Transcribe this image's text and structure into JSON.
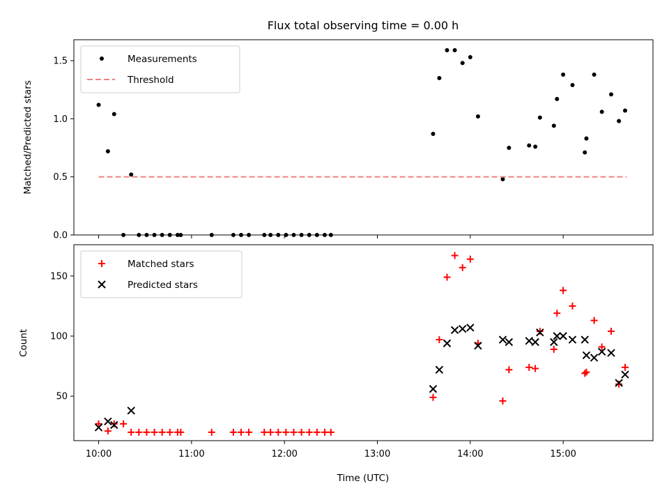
{
  "chart_data": [
    {
      "type": "scatter",
      "title": "Flux total observing time = 0.00 h",
      "xlabel": "",
      "ylabel": "Matched/Predicted stars",
      "ylim": [
        0.0,
        1.68
      ],
      "yticks": [
        "0.0",
        "0.5",
        "1.0",
        "1.5"
      ],
      "ytick_values": [
        0.0,
        0.5,
        1.0,
        1.5
      ],
      "xlim": [
        "09:44",
        "15:58"
      ],
      "xticks": [
        "10:00",
        "11:00",
        "12:00",
        "13:00",
        "14:00",
        "15:00"
      ],
      "show_xtick_labels": false,
      "grid": false,
      "legend_position": "upper-left",
      "series": [
        {
          "name": "Measurements",
          "marker": "dot",
          "color": "#000000",
          "points": [
            [
              "10:00",
              1.12
            ],
            [
              "10:06",
              0.72
            ],
            [
              "10:10",
              1.04
            ],
            [
              "10:16",
              0.0
            ],
            [
              "10:21",
              0.52
            ],
            [
              "10:26",
              0.0
            ],
            [
              "10:31",
              0.0
            ],
            [
              "10:36",
              0.0
            ],
            [
              "10:41",
              0.0
            ],
            [
              "10:46",
              0.0
            ],
            [
              "10:51",
              0.0
            ],
            [
              "10:53",
              0.0
            ],
            [
              "11:13",
              0.0
            ],
            [
              "11:27",
              0.0
            ],
            [
              "11:32",
              0.0
            ],
            [
              "11:37",
              0.0
            ],
            [
              "11:47",
              0.0
            ],
            [
              "11:51",
              0.0
            ],
            [
              "11:56",
              0.0
            ],
            [
              "12:01",
              0.0
            ],
            [
              "12:06",
              0.0
            ],
            [
              "12:11",
              0.0
            ],
            [
              "12:16",
              0.0
            ],
            [
              "12:21",
              0.0
            ],
            [
              "12:26",
              0.0
            ],
            [
              "12:30",
              0.0
            ],
            [
              "13:36",
              0.87
            ],
            [
              "13:40",
              1.35
            ],
            [
              "13:45",
              1.59
            ],
            [
              "13:50",
              1.59
            ],
            [
              "13:55",
              1.48
            ],
            [
              "14:00",
              1.53
            ],
            [
              "14:05",
              1.02
            ],
            [
              "14:21",
              0.48
            ],
            [
              "14:25",
              0.75
            ],
            [
              "14:38",
              0.77
            ],
            [
              "14:42",
              0.76
            ],
            [
              "14:45",
              1.01
            ],
            [
              "14:54",
              0.94
            ],
            [
              "14:56",
              1.17
            ],
            [
              "15:00",
              1.38
            ],
            [
              "15:06",
              1.29
            ],
            [
              "15:14",
              0.71
            ],
            [
              "15:15",
              0.83
            ],
            [
              "15:20",
              1.38
            ],
            [
              "15:25",
              1.06
            ],
            [
              "15:31",
              1.21
            ],
            [
              "15:36",
              0.98
            ],
            [
              "15:40",
              1.07
            ]
          ]
        },
        {
          "name": "Threshold",
          "marker": "dashed-line",
          "color": "#f08080",
          "points": [
            [
              "10:00",
              0.5
            ],
            [
              "15:41",
              0.5
            ]
          ]
        }
      ]
    },
    {
      "type": "scatter",
      "title": "",
      "xlabel": "Time (UTC)",
      "ylabel": "Count",
      "ylim": [
        13,
        176
      ],
      "yticks": [
        "50",
        "100",
        "150"
      ],
      "ytick_values": [
        50,
        100,
        150
      ],
      "xlim": [
        "09:44",
        "15:58"
      ],
      "xticks": [
        "10:00",
        "11:00",
        "12:00",
        "13:00",
        "14:00",
        "15:00"
      ],
      "show_xtick_labels": true,
      "grid": false,
      "legend_position": "upper-left",
      "series": [
        {
          "name": "Matched stars",
          "marker": "plus",
          "color": "#ff0000",
          "points": [
            [
              "10:00",
              27
            ],
            [
              "10:06",
              21
            ],
            [
              "10:10",
              27
            ],
            [
              "10:16",
              27
            ],
            [
              "10:21",
              20
            ],
            [
              "10:26",
              20
            ],
            [
              "10:31",
              20
            ],
            [
              "10:36",
              20
            ],
            [
              "10:41",
              20
            ],
            [
              "10:46",
              20
            ],
            [
              "10:51",
              20
            ],
            [
              "10:53",
              20
            ],
            [
              "11:13",
              20
            ],
            [
              "11:27",
              20
            ],
            [
              "11:32",
              20
            ],
            [
              "11:37",
              20
            ],
            [
              "11:47",
              20
            ],
            [
              "11:51",
              20
            ],
            [
              "11:56",
              20
            ],
            [
              "12:01",
              20
            ],
            [
              "12:06",
              20
            ],
            [
              "12:11",
              20
            ],
            [
              "12:16",
              20
            ],
            [
              "12:21",
              20
            ],
            [
              "12:26",
              20
            ],
            [
              "12:30",
              20
            ],
            [
              "13:36",
              49
            ],
            [
              "13:40",
              97
            ],
            [
              "13:45",
              149
            ],
            [
              "13:50",
              167
            ],
            [
              "13:55",
              157
            ],
            [
              "14:00",
              164
            ],
            [
              "14:05",
              94
            ],
            [
              "14:21",
              46
            ],
            [
              "14:25",
              72
            ],
            [
              "14:38",
              74
            ],
            [
              "14:42",
              73
            ],
            [
              "14:45",
              104
            ],
            [
              "14:54",
              89
            ],
            [
              "14:56",
              119
            ],
            [
              "15:00",
              138
            ],
            [
              "15:06",
              125
            ],
            [
              "15:14",
              69
            ],
            [
              "15:15",
              70
            ],
            [
              "15:20",
              113
            ],
            [
              "15:25",
              91
            ],
            [
              "15:31",
              104
            ],
            [
              "15:36",
              60
            ],
            [
              "15:40",
              74
            ]
          ]
        },
        {
          "name": "Predicted stars",
          "marker": "x",
          "color": "#000000",
          "points": [
            [
              "10:00",
              24
            ],
            [
              "10:06",
              29
            ],
            [
              "10:10",
              26
            ],
            [
              "10:21",
              38
            ],
            [
              "13:36",
              56
            ],
            [
              "13:40",
              72
            ],
            [
              "13:45",
              94
            ],
            [
              "13:50",
              105
            ],
            [
              "13:55",
              106
            ],
            [
              "14:00",
              107
            ],
            [
              "14:05",
              92
            ],
            [
              "14:21",
              97
            ],
            [
              "14:25",
              95
            ],
            [
              "14:38",
              96
            ],
            [
              "14:42",
              95
            ],
            [
              "14:45",
              103
            ],
            [
              "14:54",
              95
            ],
            [
              "14:56",
              100
            ],
            [
              "15:00",
              100
            ],
            [
              "15:06",
              97
            ],
            [
              "15:14",
              97
            ],
            [
              "15:15",
              84
            ],
            [
              "15:20",
              82
            ],
            [
              "15:25",
              87
            ],
            [
              "15:31",
              86
            ],
            [
              "15:36",
              61
            ],
            [
              "15:40",
              68
            ]
          ]
        }
      ]
    }
  ]
}
